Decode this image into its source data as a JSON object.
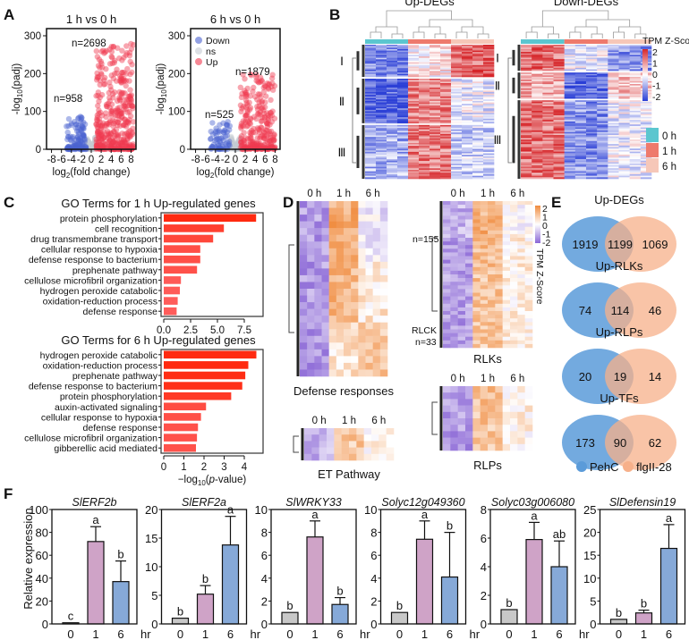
{
  "panels": {
    "A": "A",
    "B": "B",
    "C": "C",
    "D": "D",
    "E": "E",
    "F": "F"
  },
  "colors": {
    "up": "#f0394f",
    "down": "#4b63d1",
    "ns": "#c6ccd3",
    "heat_high": "#d6262a",
    "heat_mid": "#ffffff",
    "heat_low": "#2b3fd6",
    "d_high": "#f08a3c",
    "d_low": "#8a66d6",
    "go_bar_strong": "#ff2a10",
    "go_bar_light": "#ff6060",
    "time_0": "#5bc6cf",
    "time_1": "#ee7a6c",
    "time_6": "#f6c7b8",
    "venn_a": "#5b9bd9",
    "venn_b": "#f7b08a",
    "bar_0": "#c8c8c8",
    "bar_1": "#cfa3c7",
    "bar_6": "#86a9d8"
  },
  "chart_data": [
    {
      "id": "A1",
      "type": "scatter",
      "title": "1 h vs 0 h",
      "xlabel": "log2(fold change)",
      "ylabel": "-log10(padj)",
      "xticks": [
        "-8",
        "-6",
        "-4",
        "-2",
        "0",
        "2",
        "4",
        "6",
        "8"
      ],
      "xlim": [
        -9,
        9
      ],
      "yticks": [
        "0",
        "100",
        "200",
        "300"
      ],
      "ylim": [
        0,
        300
      ],
      "annotations": [
        {
          "text": "n=2698",
          "group": "Up"
        },
        {
          "text": "n=958",
          "group": "Down"
        }
      ],
      "groups": {
        "Up": {
          "x_range": [
            1,
            8.5
          ],
          "y_max": 280,
          "count": 2698
        },
        "Down": {
          "x_range": [
            -5,
            -1
          ],
          "y_max": 90,
          "count": 958
        },
        "ns": {
          "x_range": [
            -1,
            1
          ],
          "y_max": 40
        }
      }
    },
    {
      "id": "A2",
      "type": "scatter",
      "title": "6 h vs 0 h",
      "xlabel": "log2(fold change)",
      "ylabel": "-log10(padj)",
      "xticks": [
        "-8",
        "-6",
        "-4",
        "-2",
        "0",
        "2",
        "4",
        "6",
        "8"
      ],
      "xlim": [
        -9,
        9
      ],
      "yticks": [
        "0",
        "100",
        "200",
        "300"
      ],
      "ylim": [
        0,
        300
      ],
      "legend": {
        "position": "top-left",
        "entries": [
          "Down",
          "ns",
          "Up"
        ]
      },
      "annotations": [
        {
          "text": "n=1879",
          "group": "Up"
        },
        {
          "text": "n=525",
          "group": "Down"
        }
      ],
      "groups": {
        "Up": {
          "x_range": [
            1,
            8
          ],
          "y_max": 200,
          "count": 1879
        },
        "Down": {
          "x_range": [
            -5,
            -1
          ],
          "y_max": 80,
          "count": 525
        },
        "ns": {
          "x_range": [
            -1,
            1
          ],
          "y_max": 40
        }
      }
    },
    {
      "id": "B1",
      "type": "heatmap",
      "title": "Up-DEGs",
      "clusters": [
        "I",
        "II",
        "III"
      ],
      "columns": [
        "0 h",
        "0 h",
        "0 h",
        "0 h",
        "1 h",
        "1 h",
        "1 h",
        "1 h",
        "6 h",
        "6 h",
        "6 h",
        "6 h"
      ],
      "cluster_pattern": {
        "I": [
          -1.2,
          0.2,
          1.4
        ],
        "II": [
          -1.6,
          1.1,
          -0.2
        ],
        "III": [
          -0.8,
          1.2,
          -0.5
        ]
      },
      "colorbar": {
        "title": "TPM Z-Score",
        "ticks": [
          "2",
          "1",
          "0",
          "-1",
          "-2"
        ]
      }
    },
    {
      "id": "B2",
      "type": "heatmap",
      "title": "Down-DEGs",
      "clusters": [
        "I",
        "II",
        "III"
      ],
      "columns": [
        "0 h",
        "0 h",
        "0 h",
        "0 h",
        "1 h",
        "1 h",
        "1 h",
        "1 h",
        "6 h",
        "6 h",
        "6 h",
        "6 h"
      ],
      "cluster_pattern": {
        "I": [
          1.3,
          -0.2,
          -1.1
        ],
        "II": [
          0.8,
          -1.5,
          0.5
        ],
        "III": [
          1.3,
          -1.1,
          -0.2
        ]
      },
      "legend": {
        "entries": [
          "0 h",
          "1 h",
          "6 h"
        ]
      }
    },
    {
      "id": "C1",
      "type": "bar",
      "orientation": "horizontal",
      "title": "GO Terms for 1 h Up-regulated genes",
      "categories": [
        "protein phosphorylation",
        "cell recognition",
        "drug transmembrane transport",
        "cellular response to hypoxia",
        "defense response to bacterium",
        "prephenate pathway",
        "cellulose microfibril organization",
        "hydrogen peroxide catabolic",
        "oxidation-reduction process",
        "defense response"
      ],
      "values": [
        8.6,
        5.6,
        4.6,
        3.4,
        3.4,
        3.1,
        1.6,
        1.5,
        1.3,
        1.2
      ],
      "xticks": [
        "0.0",
        "2.5",
        "5.0",
        "7.5"
      ],
      "xlim": [
        0,
        9
      ]
    },
    {
      "id": "C2",
      "type": "bar",
      "orientation": "horizontal",
      "title": "GO Terms for 6 h Up-regulated genes",
      "categories": [
        "hydrogen peroxide catabolic",
        "oxidation-reduction process",
        "prephenate pathway",
        "defense response to bacterium",
        "protein phosphorylation",
        "auxin-activated signaling",
        "cellular response to hypoxia",
        "defense response",
        "cellulose microfibril organization",
        "gibberellic acid mediated"
      ],
      "values": [
        4.6,
        4.2,
        4.05,
        3.9,
        3.35,
        2.1,
        1.85,
        1.7,
        1.65,
        1.6
      ],
      "xticks": [
        "0",
        "1",
        "2",
        "3",
        "4"
      ],
      "xlim": [
        0,
        4.8
      ],
      "xlabel": "-log10(p-value)"
    },
    {
      "id": "D",
      "type": "heatmap",
      "subpanels": [
        {
          "title": "Defense responses",
          "columns": [
            "0 h",
            "1 h",
            "6 h"
          ]
        },
        {
          "title": "RLKs",
          "columns": [
            "0 h",
            "1 h",
            "6 h"
          ],
          "annotations": [
            "n=155",
            "RLCK",
            "n=33"
          ]
        },
        {
          "title": "ET Pathway",
          "columns": [
            "0 h",
            "1 h",
            "6 h"
          ]
        },
        {
          "title": "RLPs",
          "columns": [
            "0 h",
            "1 h",
            "6 h"
          ]
        }
      ],
      "colorbar": {
        "title": "TPM Z-Score",
        "ticks": [
          "2",
          "1",
          "0",
          "-1",
          "-2"
        ]
      }
    },
    {
      "id": "E",
      "type": "venn",
      "sets": [
        {
          "title": "Up-DEGs",
          "left": 1919,
          "both": 1199,
          "right": 1069
        },
        {
          "title": "Up-RLKs",
          "left": 74,
          "both": 114,
          "right": 46
        },
        {
          "title": "Up-RLPs",
          "left": 20,
          "both": 19,
          "right": 14
        },
        {
          "title": "Up-TFs",
          "left": 173,
          "both": 90,
          "right": 62
        }
      ],
      "legend": [
        "PehC",
        "flgII-28"
      ]
    },
    {
      "id": "F",
      "type": "bar",
      "ylabel": "Relative expression",
      "xunit": "hr",
      "categories": [
        "0",
        "1",
        "6"
      ],
      "charts": [
        {
          "gene": "SlERF2b",
          "ylim": [
            0,
            100
          ],
          "yticks": [
            "0",
            "20",
            "40",
            "60",
            "80",
            "100"
          ],
          "values": [
            1,
            72,
            37
          ],
          "errors": [
            0,
            13,
            18
          ],
          "letters": [
            "c",
            "a",
            "b"
          ]
        },
        {
          "gene": "SlERF2a",
          "ylim": [
            0,
            20
          ],
          "yticks": [
            "0",
            "5",
            "10",
            "15",
            "20"
          ],
          "values": [
            1,
            5.2,
            13.8
          ],
          "errors": [
            0,
            1.5,
            5
          ],
          "letters": [
            "b",
            "b",
            "a"
          ]
        },
        {
          "gene": "SlWRKY33",
          "ylim": [
            0,
            10
          ],
          "yticks": [
            "0",
            "2",
            "4",
            "6",
            "8",
            "10"
          ],
          "values": [
            1,
            7.6,
            1.7
          ],
          "errors": [
            0,
            1.4,
            0.6
          ],
          "letters": [
            "b",
            "a",
            "b"
          ]
        },
        {
          "gene": "Solyc12g049360",
          "ylim": [
            0,
            10
          ],
          "yticks": [
            "0",
            "2",
            "4",
            "6",
            "8",
            "10"
          ],
          "values": [
            1,
            7.4,
            4.1
          ],
          "errors": [
            0,
            1.6,
            3.9
          ],
          "letters": [
            "b",
            "a",
            "b"
          ]
        },
        {
          "gene": "Solyc03g006080",
          "ylim": [
            0,
            8
          ],
          "yticks": [
            "0",
            "2",
            "4",
            "6",
            "8"
          ],
          "values": [
            1,
            5.9,
            4
          ],
          "errors": [
            0,
            1.2,
            1.8
          ],
          "letters": [
            "b",
            "a",
            "ab"
          ]
        },
        {
          "gene": "SlDefensin19",
          "ylim": [
            0,
            25
          ],
          "yticks": [
            "0",
            "5",
            "10",
            "15",
            "20",
            "25"
          ],
          "values": [
            1,
            2.4,
            16.5
          ],
          "errors": [
            0,
            0.6,
            5.2
          ],
          "letters": [
            "b",
            "b",
            "a"
          ]
        }
      ]
    }
  ]
}
